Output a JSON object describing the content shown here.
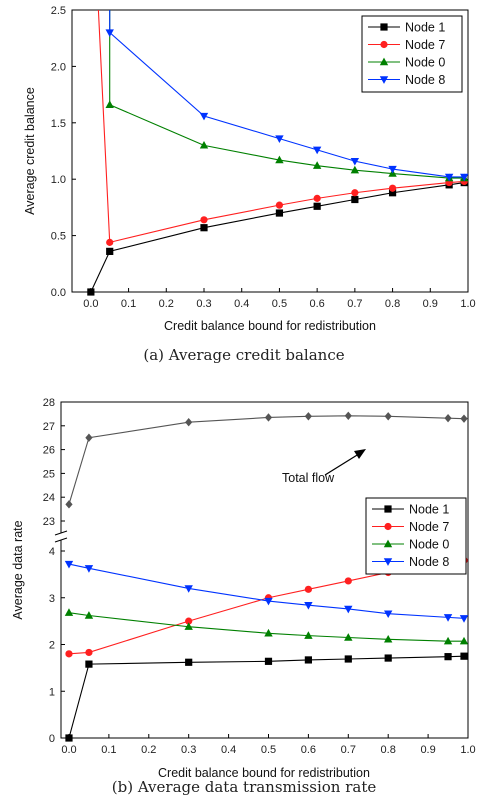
{
  "chart_data": [
    {
      "type": "line",
      "caption": "(a)  Average credit balance",
      "xlabel": "Credit balance bound for redistribution",
      "ylabel": "Average credit balance",
      "xlim": [
        -0.05,
        1.0
      ],
      "ylim": [
        0.0,
        2.5
      ],
      "xticks": [
        "0.0",
        "0.1",
        "0.2",
        "0.3",
        "0.4",
        "0.5",
        "0.6",
        "0.7",
        "0.8",
        "0.9",
        "1.0"
      ],
      "yticks": [
        "0.0",
        "0.5",
        "1.0",
        "1.5",
        "2.0",
        "2.5"
      ],
      "legend_position": "top-right",
      "series": [
        {
          "name": "Node 1",
          "color": "#000000",
          "marker": "square",
          "x": [
            0.0,
            0.05,
            0.3,
            0.5,
            0.6,
            0.7,
            0.8,
            0.95,
            0.99
          ],
          "y": [
            0.0,
            0.36,
            0.57,
            0.7,
            0.76,
            0.82,
            0.88,
            0.95,
            0.97
          ]
        },
        {
          "name": "Node 7",
          "color": "#ff2020",
          "marker": "circle",
          "x": [
            0.05,
            0.3,
            0.5,
            0.6,
            0.7,
            0.8,
            0.95,
            0.99
          ],
          "y": [
            0.44,
            0.64,
            0.77,
            0.83,
            0.88,
            0.92,
            0.97,
            0.98
          ],
          "offscale_start": {
            "x": 0.02,
            "y": 2.5
          }
        },
        {
          "name": "Node 0",
          "color": "#008000",
          "marker": "triangle-up",
          "x": [
            0.05,
            0.3,
            0.5,
            0.6,
            0.7,
            0.8,
            0.95,
            0.99
          ],
          "y": [
            1.66,
            1.3,
            1.17,
            1.12,
            1.08,
            1.05,
            1.01,
            1.01
          ],
          "offscale_start": {
            "x": 0.05,
            "y": 2.5
          }
        },
        {
          "name": "Node 8",
          "color": "#0033ff",
          "marker": "triangle-down",
          "x": [
            0.05,
            0.3,
            0.5,
            0.6,
            0.7,
            0.8,
            0.95,
            0.99
          ],
          "y": [
            2.3,
            1.56,
            1.36,
            1.26,
            1.16,
            1.09,
            1.02,
            1.02
          ],
          "offscale_start": {
            "x": 0.05,
            "y": 2.5
          }
        }
      ]
    },
    {
      "type": "line",
      "caption": "(b)  Average data transmission rate",
      "xlabel": "Credit balance bound for redistribution",
      "ylabel": "Average data rate",
      "xlim": [
        -0.02,
        1.0
      ],
      "y_broken_axis": {
        "lower": [
          0,
          4.5
        ],
        "upper": [
          22.5,
          28
        ]
      },
      "xticks": [
        "0.0",
        "0.1",
        "0.2",
        "0.3",
        "0.4",
        "0.5",
        "0.6",
        "0.7",
        "0.8",
        "0.9",
        "1.0"
      ],
      "yticks_lower": [
        "0",
        "1",
        "2",
        "3",
        "4"
      ],
      "yticks_upper": [
        "23",
        "24",
        "25",
        "26",
        "27",
        "28"
      ],
      "legend_position": "right",
      "annotation": "Total flow",
      "series": [
        {
          "name": "Total flow",
          "color": "#555555",
          "marker": "diamond",
          "label": "",
          "x": [
            0.0,
            0.05,
            0.3,
            0.5,
            0.6,
            0.7,
            0.8,
            0.95,
            0.99
          ],
          "y": [
            23.7,
            26.5,
            27.15,
            27.35,
            27.4,
            27.42,
            27.4,
            27.32,
            27.3
          ]
        },
        {
          "name": "Node 1",
          "color": "#000000",
          "marker": "square",
          "x": [
            0.0,
            0.05,
            0.3,
            0.5,
            0.6,
            0.7,
            0.8,
            0.95,
            0.99
          ],
          "y": [
            0.0,
            1.58,
            1.62,
            1.64,
            1.67,
            1.69,
            1.71,
            1.74,
            1.75
          ]
        },
        {
          "name": "Node 7",
          "color": "#ff2020",
          "marker": "circle",
          "x": [
            0.0,
            0.05,
            0.3,
            0.5,
            0.6,
            0.7,
            0.8,
            0.95,
            0.99
          ],
          "y": [
            1.8,
            1.83,
            2.5,
            3.0,
            3.18,
            3.36,
            3.54,
            3.76,
            3.8
          ]
        },
        {
          "name": "Node 0",
          "color": "#008000",
          "marker": "triangle-up",
          "x": [
            0.0,
            0.05,
            0.3,
            0.5,
            0.6,
            0.7,
            0.8,
            0.95,
            0.99
          ],
          "y": [
            2.68,
            2.62,
            2.38,
            2.24,
            2.19,
            2.15,
            2.11,
            2.07,
            2.07
          ]
        },
        {
          "name": "Node 8",
          "color": "#0033ff",
          "marker": "triangle-down",
          "x": [
            0.0,
            0.05,
            0.3,
            0.5,
            0.6,
            0.7,
            0.8,
            0.95,
            0.99
          ],
          "y": [
            3.72,
            3.63,
            3.2,
            2.93,
            2.84,
            2.76,
            2.66,
            2.58,
            2.56
          ]
        }
      ]
    }
  ]
}
